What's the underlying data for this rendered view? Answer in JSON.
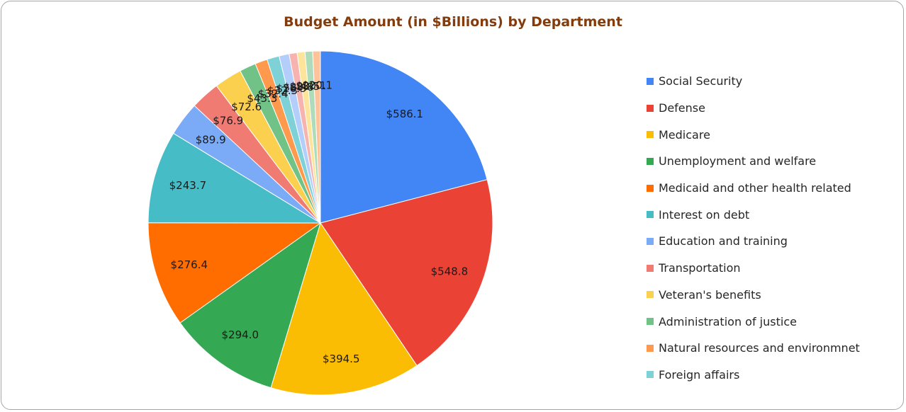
{
  "chart_data": {
    "type": "pie",
    "title": "Budget Amount (in $Billions) by Department",
    "legend_position": "right",
    "categories": [
      "Social Security",
      "Defense",
      "Medicare",
      "Unemployment and welfare",
      "Medicaid and other health related",
      "Interest on debt",
      "Education and training",
      "Transportation",
      "Veteran's benefits",
      "Administration of justice",
      "Natural resources and environmnet",
      "Foreign affairs",
      "",
      "",
      "",
      "",
      ""
    ],
    "values": [
      586.1,
      548.8,
      394.5,
      294.0,
      276.4,
      243.7,
      89.9,
      76.9,
      72.6,
      43.3,
      32.4,
      32.3,
      26.5,
      20.8,
      20.5,
      20.1,
      20.1
    ],
    "data_labels": [
      "$586.1",
      "$548.8",
      "$394.5",
      "$294.0",
      "$276.4",
      "$243.7",
      "$89.9",
      "$76.9",
      "$72.6",
      "$43.3",
      "$32.4",
      "$32.3",
      "$26.5",
      "$20.8",
      "$20.5",
      "$20.1",
      "$20.1"
    ],
    "colors": [
      "#4285f4",
      "#ea4335",
      "#fbbc04",
      "#34a853",
      "#ff6d01",
      "#46bdc6",
      "#7baaf7",
      "#f07b72",
      "#fcd04f",
      "#71c287",
      "#ff994d",
      "#7ed1d7",
      "#b3cefb",
      "#f7b4ae",
      "#fde49b",
      "#aedcba",
      "#ffc39a"
    ],
    "legend_entries_shown": 12
  }
}
